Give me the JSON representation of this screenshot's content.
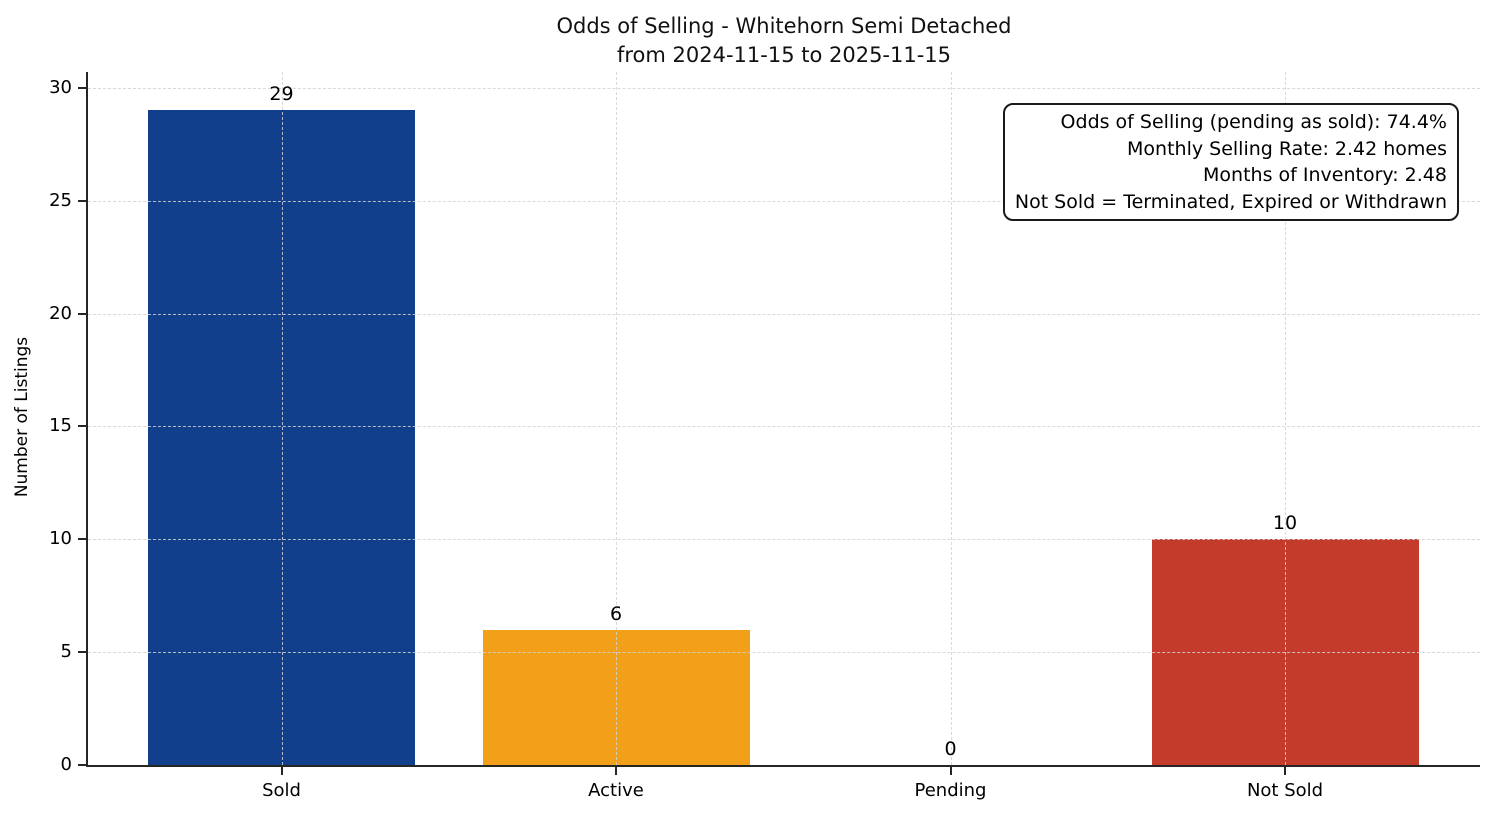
{
  "chart_data": {
    "type": "bar",
    "title_line1": "Odds of Selling - Whitehorn Semi Detached",
    "title_line2": "from 2024-11-15 to 2025-11-15",
    "ylabel": "Number of Listings",
    "xlabel": "",
    "categories": [
      "Sold",
      "Active",
      "Pending",
      "Not Sold"
    ],
    "values": [
      29,
      6,
      0,
      10
    ],
    "bar_colors": [
      "#123f8c",
      "#f2a019",
      null,
      "#c43b2b"
    ],
    "yticks": [
      0,
      5,
      10,
      15,
      20,
      25,
      30
    ],
    "ylim": [
      0,
      30.7
    ],
    "grid": true,
    "legend": "none",
    "annotation": {
      "lines": [
        "Odds of Selling (pending as sold): 74.4%",
        "Monthly Selling Rate: 2.42 homes",
        "Months of Inventory: 2.48",
        "Not Sold = Terminated, Expired or Withdrawn"
      ]
    }
  }
}
